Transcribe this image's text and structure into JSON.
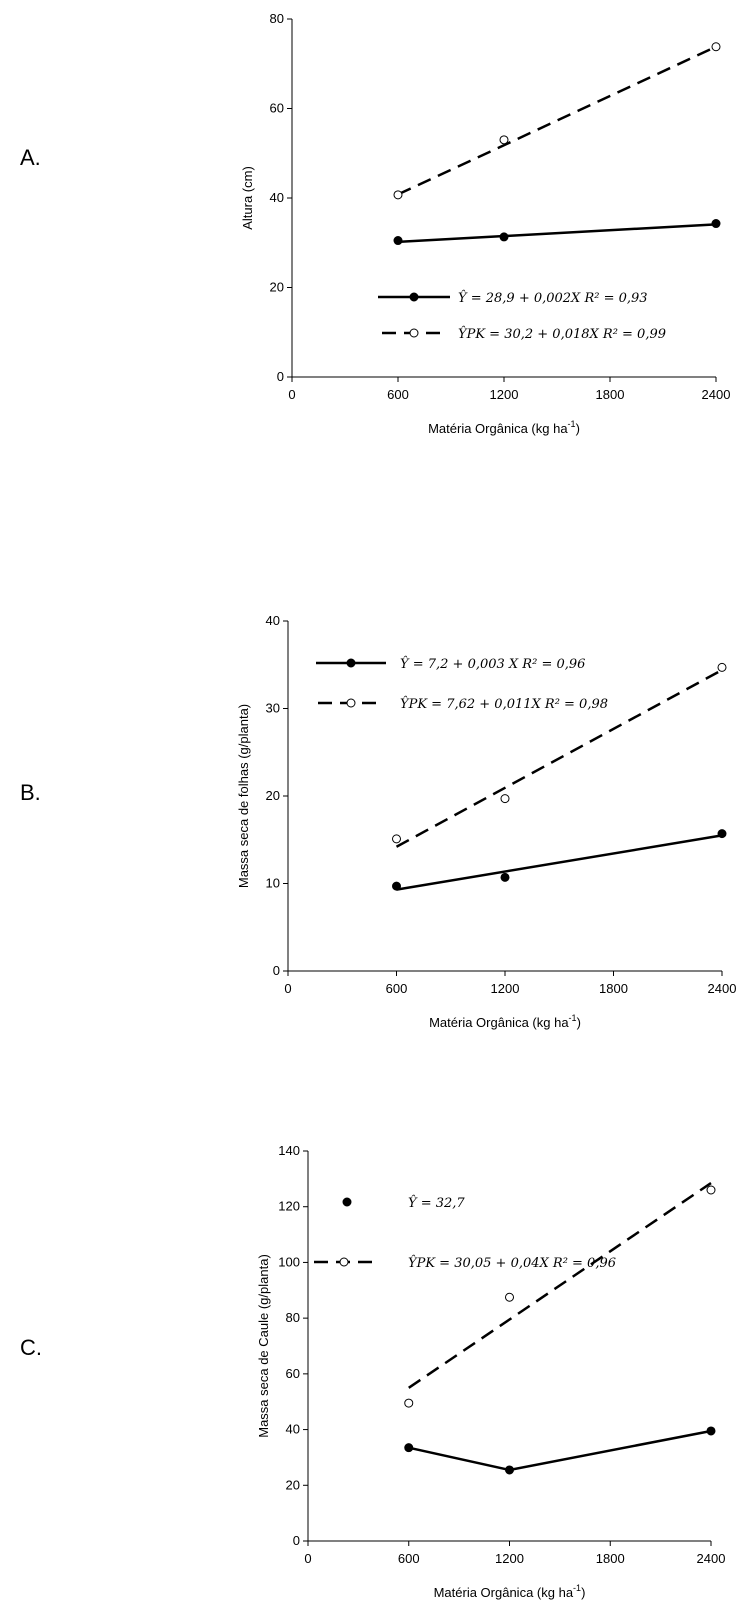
{
  "chart_data": [
    {
      "type": "scatter",
      "panel": "A.",
      "ylabel": "Altura (cm)",
      "xlabel": [
        "Matéria Orgânica (kg ha",
        "-1",
        ")"
      ],
      "xlim": [
        0,
        2400
      ],
      "xticks": [
        0,
        600,
        1200,
        1800,
        2400
      ],
      "ylim": [
        0,
        80
      ],
      "yticks": [
        0,
        20,
        40,
        60,
        80
      ],
      "x": [
        600,
        1200,
        2400
      ],
      "series": [
        {
          "name": "Ŷ = 28,9 + 0,002X    R² = 0,93",
          "color": "#000000",
          "marker": "filled",
          "dashed": false,
          "values": [
            30.5,
            31.3,
            34.3
          ],
          "fit_x": [
            600,
            2400
          ],
          "fit_values": [
            30.2,
            34.1
          ]
        },
        {
          "name": "ŶPK = 30,2 + 0,018X    R² = 0,99",
          "color": "#000000",
          "marker": "open",
          "dashed": true,
          "values": [
            40.7,
            53,
            73.8
          ],
          "fit_x": [
            600,
            2400
          ],
          "fit_values": [
            40.8,
            73.8
          ]
        }
      ]
    },
    {
      "type": "scatter",
      "panel": "B.",
      "ylabel": "Massa seca de folhas (g/planta)",
      "xlabel": [
        "Matéria Orgânica (kg ha",
        "-1",
        ")"
      ],
      "xlim": [
        0,
        2400
      ],
      "xticks": [
        0,
        600,
        1200,
        1800,
        2400
      ],
      "ylim": [
        0,
        40
      ],
      "yticks": [
        0,
        10,
        20,
        30,
        40
      ],
      "x": [
        600,
        1200,
        2400
      ],
      "series": [
        {
          "name": "Ŷ = 7,2 + 0,003 X    R² = 0,96",
          "color": "#000000",
          "marker": "filled",
          "dashed": false,
          "values": [
            9.7,
            10.7,
            15.7
          ],
          "fit_x": [
            600,
            2400
          ],
          "fit_values": [
            9.3,
            15.5
          ]
        },
        {
          "name": "ŶPK = 7,62 + 0,011X    R² = 0,98",
          "color": "#000000",
          "marker": "open",
          "dashed": true,
          "values": [
            15.1,
            19.7,
            34.7
          ],
          "fit_x": [
            600,
            2400
          ],
          "fit_values": [
            14.2,
            34.4
          ]
        }
      ]
    },
    {
      "type": "scatter",
      "panel": "C.",
      "ylabel": "Massa seca de Caule (g/planta)",
      "xlabel": [
        "Matéria Orgânica (kg ha",
        "-1",
        ")"
      ],
      "xlim": [
        0,
        2400
      ],
      "xticks": [
        0,
        600,
        1200,
        1800,
        2400
      ],
      "ylim": [
        0,
        140
      ],
      "yticks": [
        0,
        20,
        40,
        60,
        80,
        100,
        120,
        140
      ],
      "x": [
        600,
        1200,
        2400
      ],
      "series": [
        {
          "name": "Ŷ = 32,7",
          "color": "#000000",
          "marker": "filled",
          "dashed": false,
          "connect": true,
          "values": [
            33.5,
            25.5,
            39.5
          ]
        },
        {
          "name": "ŶPK = 30,05 + 0,04X    R² = 0,96",
          "color": "#000000",
          "marker": "open",
          "dashed": true,
          "values": [
            49.5,
            87.5,
            126
          ],
          "fit_x": [
            600,
            2400
          ],
          "fit_values": [
            55,
            128.5
          ]
        }
      ]
    }
  ]
}
